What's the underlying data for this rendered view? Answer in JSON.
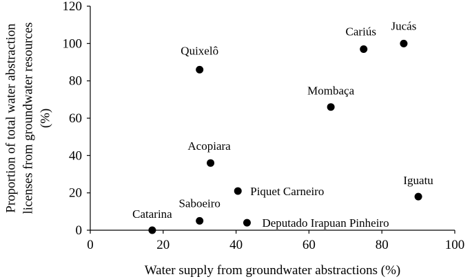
{
  "chart_data": {
    "type": "scatter",
    "title": "",
    "xlabel": "Water supply from groundwater abstractions (%)",
    "ylabel_lines": [
      "Proportion of total water abstraction",
      "licenses from groundwater resources",
      "(%)"
    ],
    "xlim": [
      0,
      100
    ],
    "ylim": [
      0,
      120
    ],
    "xticks": [
      "0",
      "20",
      "40",
      "60",
      "80",
      "100"
    ],
    "yticks": [
      "0",
      "20",
      "40",
      "60",
      "80",
      "100",
      "120"
    ],
    "grid": false,
    "legend": "none",
    "marker_color": "#000000",
    "points": [
      {
        "label": "Catarina",
        "x": 17,
        "y": 0
      },
      {
        "label": "Saboeiro",
        "x": 30,
        "y": 5
      },
      {
        "label": "Deputado Irapuan Pinheiro",
        "x": 43,
        "y": 4
      },
      {
        "label": "Piquet Carneiro",
        "x": 40.5,
        "y": 21
      },
      {
        "label": "Acopiara",
        "x": 33,
        "y": 36
      },
      {
        "label": "Quixelô",
        "x": 30,
        "y": 86
      },
      {
        "label": "Mombaça",
        "x": 66,
        "y": 66
      },
      {
        "label": "Cariús",
        "x": 75,
        "y": 97
      },
      {
        "label": "Jucás",
        "x": 86,
        "y": 100
      },
      {
        "label": "Iguatu",
        "x": 90,
        "y": 18
      }
    ]
  }
}
